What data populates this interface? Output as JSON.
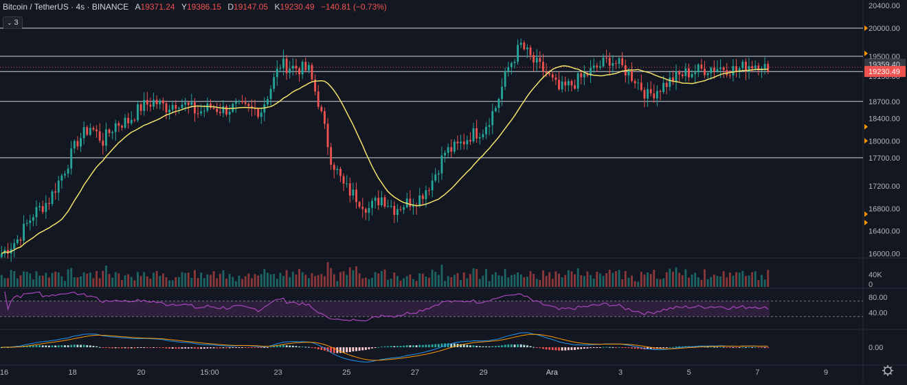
{
  "header": {
    "symbol": "Bitcoin / TetherUS · 4s · BINANCE",
    "fields": [
      {
        "label": "A",
        "value": "19371.24"
      },
      {
        "label": "Y",
        "value": "19386.15"
      },
      {
        "label": "D",
        "value": "19147.05"
      },
      {
        "label": "K",
        "value": "19230.49"
      }
    ],
    "change": "−140.81 (−0.73%)",
    "collapse_count": "3"
  },
  "colors": {
    "background": "#131722",
    "up": "#26a69a",
    "down": "#ef5350",
    "ma": "#f5e46a",
    "rsi": "#ab47bc",
    "macd": "#2196f3",
    "signal": "#ff9800"
  },
  "chart_data": {
    "type": "candlestick",
    "x_labels": [
      "16",
      "18",
      "20",
      "15:00",
      "23",
      "25",
      "27",
      "29",
      "Ara",
      "3",
      "5",
      "7",
      "9"
    ],
    "price_axis": {
      "ticks": [
        "20400.00",
        "20000.00",
        "19500.00",
        "19150.00",
        "18700.00",
        "18400.00",
        "18000.00",
        "17700.00",
        "17200.00",
        "16800.00",
        "16400.00",
        "16000.00"
      ],
      "tick_values": [
        20400,
        20000,
        19500,
        19150,
        18700,
        18400,
        18000,
        17700,
        17200,
        16800,
        16400,
        16000
      ],
      "range": [
        15970,
        20450
      ],
      "current_price": "19230.49",
      "marked_price": "19359.40"
    },
    "horizontal_levels": [
      20000,
      19500,
      19230,
      18700,
      17700
    ],
    "close_anchors": [
      [
        0,
        16000
      ],
      [
        5,
        16250
      ],
      [
        10,
        16700
      ],
      [
        15,
        16950
      ],
      [
        20,
        17500
      ],
      [
        24,
        18000
      ],
      [
        28,
        18250
      ],
      [
        32,
        18000
      ],
      [
        36,
        18300
      ],
      [
        40,
        18350
      ],
      [
        44,
        18600
      ],
      [
        48,
        18700
      ],
      [
        52,
        18600
      ],
      [
        56,
        18700
      ],
      [
        62,
        18500
      ],
      [
        66,
        18600
      ],
      [
        70,
        18550
      ],
      [
        74,
        18600
      ],
      [
        78,
        18550
      ],
      [
        82,
        18550
      ],
      [
        88,
        19350
      ],
      [
        93,
        19300
      ],
      [
        97,
        19250
      ],
      [
        100,
        18700
      ],
      [
        104,
        17700
      ],
      [
        108,
        17200
      ],
      [
        112,
        17000
      ],
      [
        116,
        16800
      ],
      [
        120,
        17000
      ],
      [
        124,
        16800
      ],
      [
        128,
        16900
      ],
      [
        132,
        17000
      ],
      [
        136,
        17300
      ],
      [
        140,
        17800
      ],
      [
        144,
        17900
      ],
      [
        148,
        18100
      ],
      [
        152,
        18200
      ],
      [
        156,
        18600
      ],
      [
        160,
        19300
      ],
      [
        164,
        19700
      ],
      [
        168,
        19400
      ],
      [
        172,
        19200
      ],
      [
        176,
        18900
      ],
      [
        180,
        19000
      ],
      [
        184,
        19150
      ],
      [
        188,
        19300
      ],
      [
        192,
        19450
      ],
      [
        196,
        19300
      ],
      [
        200,
        19100
      ],
      [
        204,
        18800
      ],
      [
        208,
        18950
      ],
      [
        212,
        19100
      ],
      [
        216,
        19200
      ],
      [
        220,
        19250
      ],
      [
        224,
        19300
      ],
      [
        228,
        19300
      ],
      [
        232,
        19250
      ],
      [
        236,
        19350
      ],
      [
        240,
        19380
      ],
      [
        242,
        19230
      ]
    ],
    "volume": {
      "ticks": [
        "40K",
        "0"
      ],
      "tick_values": [
        40000,
        0
      ]
    },
    "rsi": {
      "ticks": [
        "80.00",
        "40.00"
      ],
      "tick_values": [
        80,
        40
      ],
      "bands": [
        70,
        30
      ]
    },
    "macd": {
      "ticks": [
        "0.00"
      ],
      "tick_values": [
        0
      ]
    }
  }
}
